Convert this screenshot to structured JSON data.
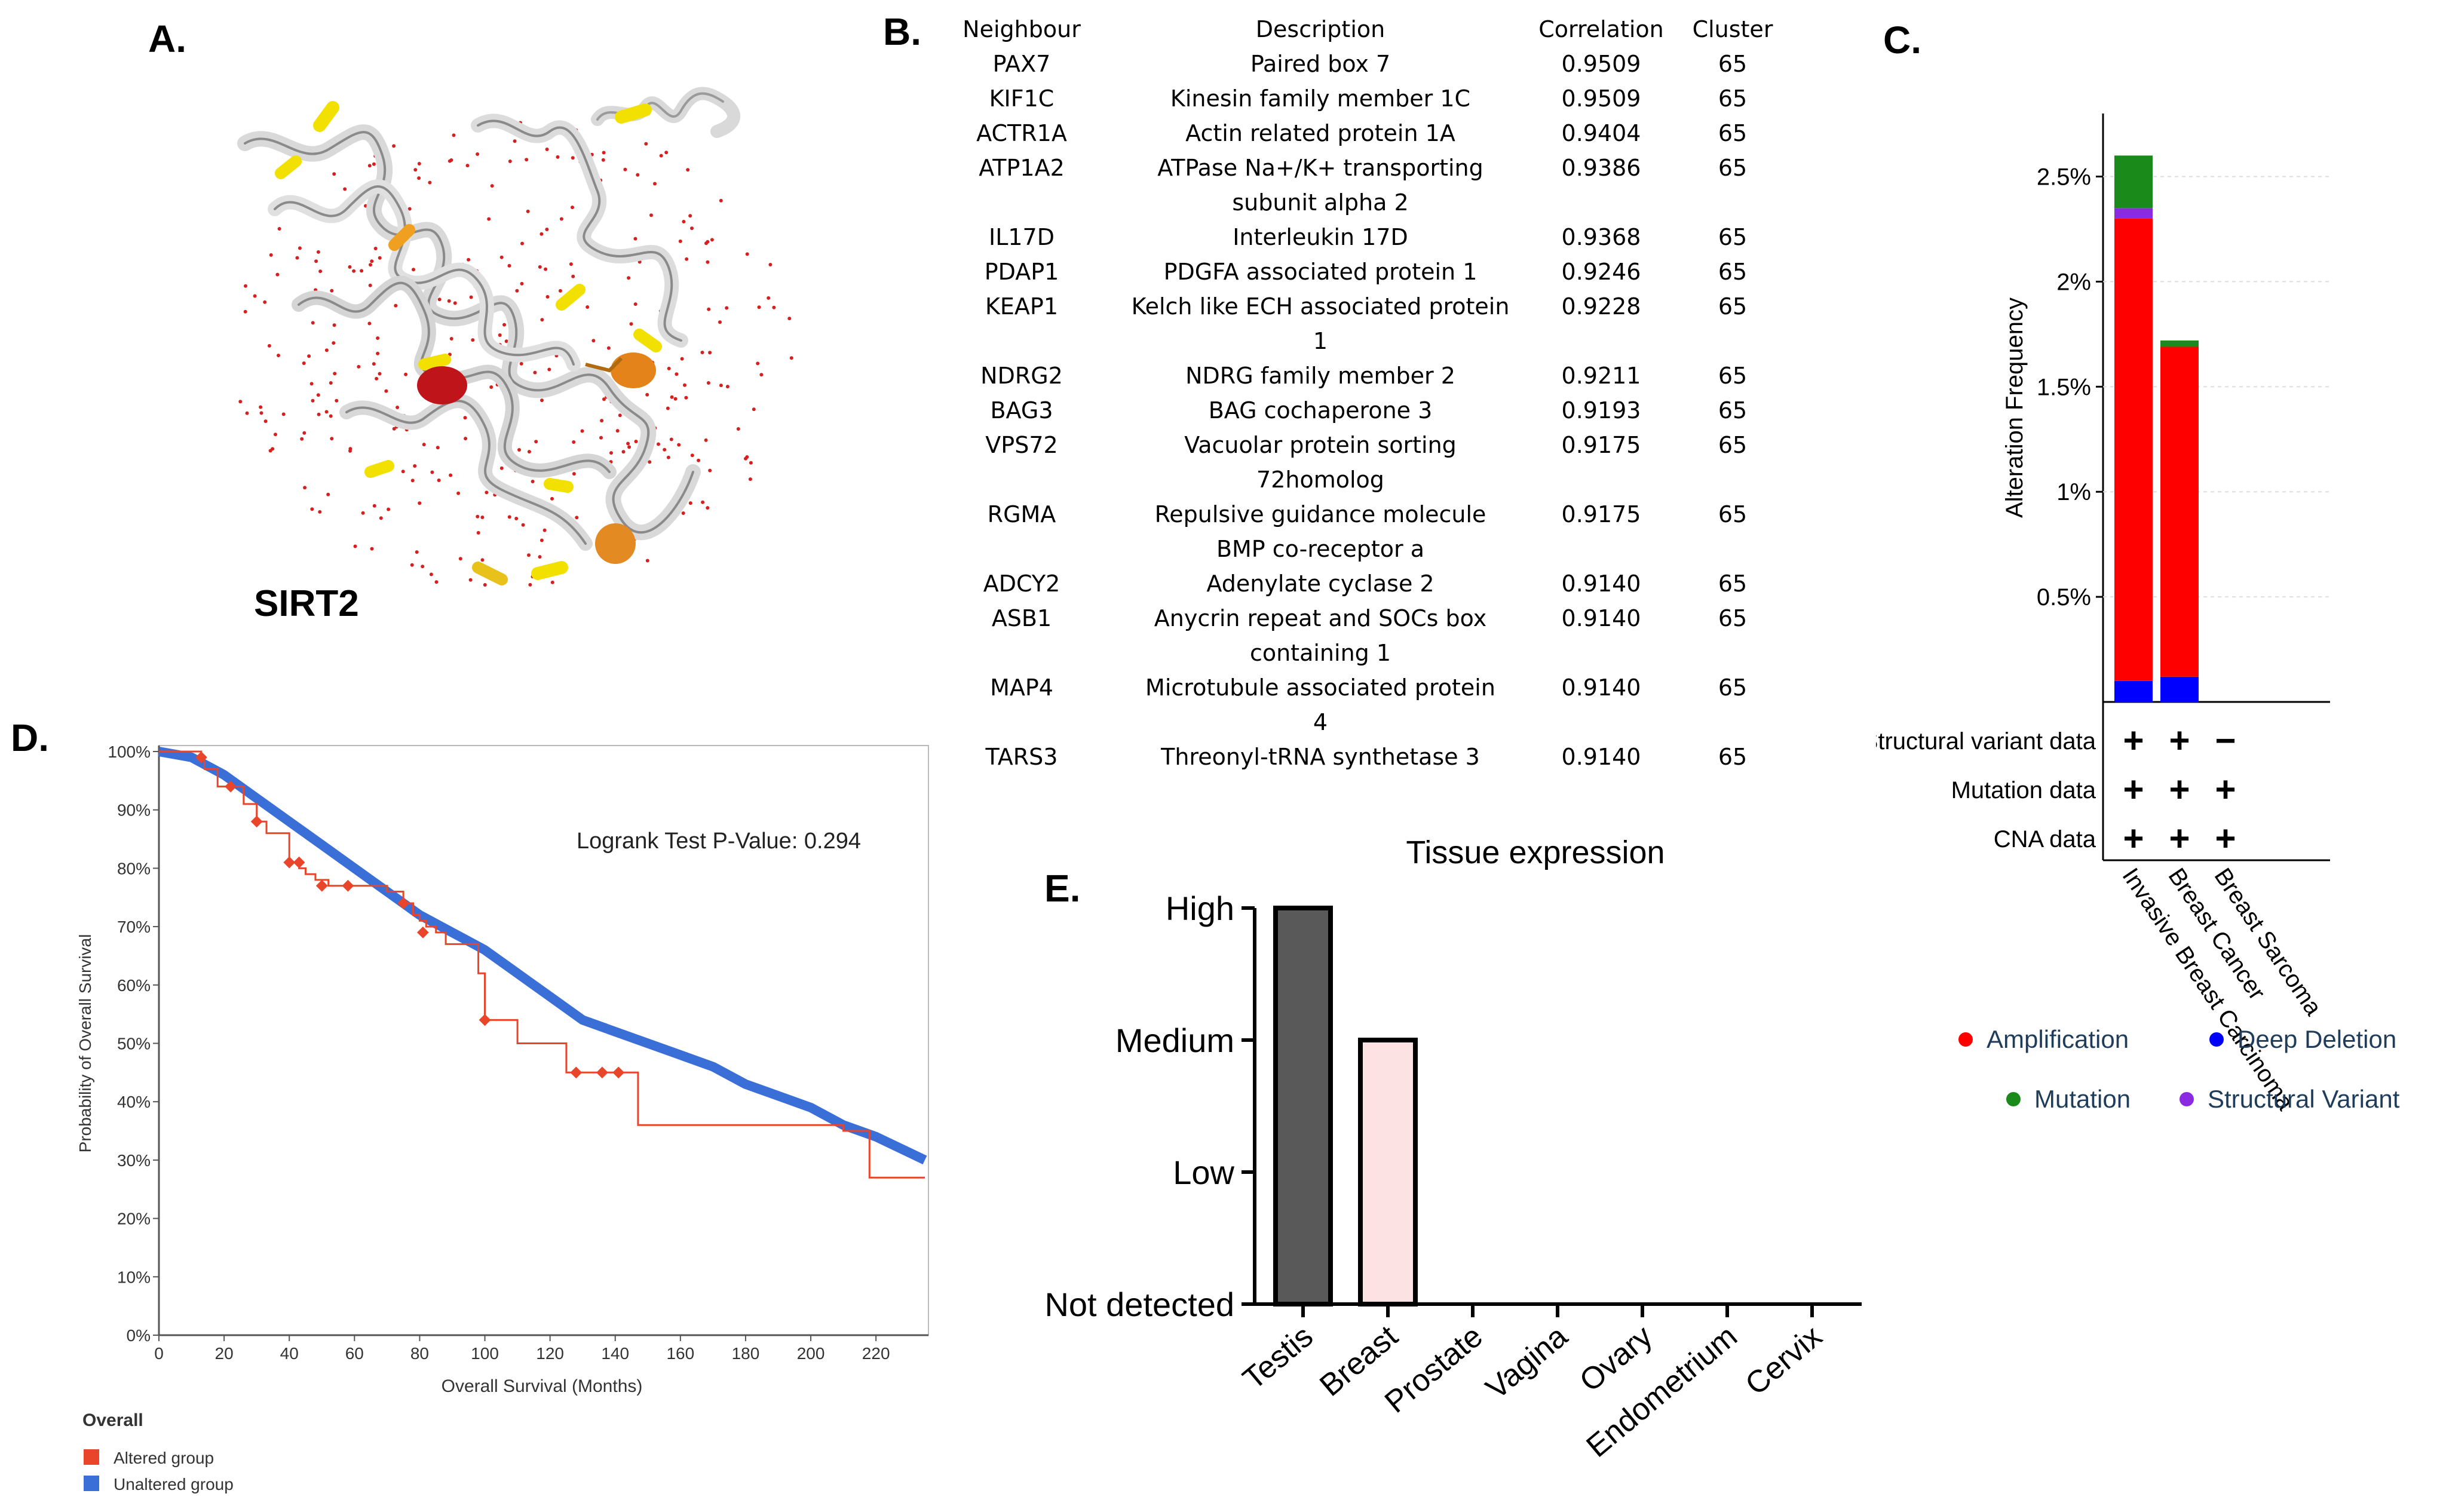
{
  "panels": {
    "a": "A.",
    "b": "B.",
    "c": "C.",
    "d": "D.",
    "e": "E."
  },
  "panel_a": {
    "protein_label": "SIRT2"
  },
  "panel_b": {
    "headers": {
      "gene": "Neighbour",
      "desc": "Description",
      "corr": "Correlation",
      "cluster": "Cluster"
    },
    "rows": [
      {
        "gene": "PAX7",
        "desc1": "Paired box 7",
        "desc2": "",
        "corr": "0.9509",
        "cluster": "65"
      },
      {
        "gene": "KIF1C",
        "desc1": "Kinesin family member 1C",
        "desc2": "",
        "corr": "0.9509",
        "cluster": "65"
      },
      {
        "gene": "ACTR1A",
        "desc1": "Actin related protein 1A",
        "desc2": "",
        "corr": "0.9404",
        "cluster": "65"
      },
      {
        "gene": "ATP1A2",
        "desc1": "ATPase Na+/K+ transporting",
        "desc2": "subunit alpha 2",
        "corr": "0.9386",
        "cluster": "65"
      },
      {
        "gene": "IL17D",
        "desc1": "Interleukin 17D",
        "desc2": "",
        "corr": "0.9368",
        "cluster": "65"
      },
      {
        "gene": "PDAP1",
        "desc1": "PDGFA associated protein 1",
        "desc2": "",
        "corr": "0.9246",
        "cluster": "65"
      },
      {
        "gene": "KEAP1",
        "desc1": "Kelch like ECH associated protein",
        "desc2": "1",
        "corr": "0.9228",
        "cluster": "65"
      },
      {
        "gene": "NDRG2",
        "desc1": "NDRG family member 2",
        "desc2": "",
        "corr": "0.9211",
        "cluster": "65"
      },
      {
        "gene": "BAG3",
        "desc1": "BAG cochaperone 3",
        "desc2": "",
        "corr": "0.9193",
        "cluster": "65"
      },
      {
        "gene": "VPS72",
        "desc1": "Vacuolar protein sorting",
        "desc2": "72homolog",
        "corr": "0.9175",
        "cluster": "65"
      },
      {
        "gene": "RGMA",
        "desc1": "Repulsive guidance molecule",
        "desc2": "BMP co-receptor a",
        "corr": "0.9175",
        "cluster": "65"
      },
      {
        "gene": "ADCY2",
        "desc1": "Adenylate cyclase 2",
        "desc2": "",
        "corr": "0.9140",
        "cluster": "65"
      },
      {
        "gene": "ASB1",
        "desc1": "Anycrin repeat and SOCs box",
        "desc2": "containing 1",
        "corr": "0.9140",
        "cluster": "65"
      },
      {
        "gene": "MAP4",
        "desc1": "Microtubule associated protein",
        "desc2": "4",
        "corr": "0.9140",
        "cluster": "65"
      },
      {
        "gene": "TARS3",
        "desc1": "Threonyl-tRNA synthetase 3",
        "desc2": "",
        "corr": "0.9140",
        "cluster": "65"
      }
    ]
  },
  "colors": {
    "amplification": "#ff0000",
    "deep_deletion": "#0000ff",
    "mutation": "#1a8a1a",
    "structural_variant": "#8a2be2",
    "altered": "#e8452a",
    "unaltered": "#3a6fd8",
    "testis": "#595959",
    "breast": "#fde2e4"
  },
  "chart_data": [
    {
      "id": "panel-c",
      "type": "bar",
      "ylabel": "Alteration Frequency",
      "yticks": [
        "0.5%",
        "1%",
        "1.5%",
        "2%",
        "2.5%"
      ],
      "ylim": [
        0,
        2.8
      ],
      "categories": [
        "Invasive Breast Carcinoma",
        "Breast Cancer",
        "Breast Sarcoma"
      ],
      "series": [
        {
          "name": "Deep Deletion",
          "values": [
            0.1,
            0.12,
            0
          ]
        },
        {
          "name": "Amplification",
          "values": [
            2.2,
            1.57,
            0
          ]
        },
        {
          "name": "Structural Variant",
          "values": [
            0.05,
            0,
            0
          ]
        },
        {
          "name": "Mutation",
          "values": [
            0.25,
            0.03,
            0
          ]
        }
      ],
      "data_rows": [
        {
          "label": "Structural variant data",
          "marks": [
            "+",
            "+",
            "−"
          ]
        },
        {
          "label": "Mutation data",
          "marks": [
            "+",
            "+",
            "+"
          ]
        },
        {
          "label": "CNA data",
          "marks": [
            "+",
            "+",
            "+"
          ]
        }
      ],
      "legend": [
        "Amplification",
        "Deep Deletion",
        "Mutation",
        "Structural Variant"
      ]
    },
    {
      "id": "panel-d",
      "type": "line",
      "title": "Logrank Test P-Value: 0.294",
      "xlabel": "Overall Survival (Months)",
      "ylabel": "Probability of Overall Survival",
      "xlim": [
        0,
        235
      ],
      "ylim": [
        0,
        100
      ],
      "xticks": [
        0,
        20,
        40,
        60,
        80,
        100,
        120,
        140,
        160,
        180,
        200,
        220
      ],
      "yticks": [
        "0%",
        "10%",
        "20%",
        "30%",
        "40%",
        "50%",
        "60%",
        "70%",
        "80%",
        "90%",
        "100%"
      ],
      "legend_title": "Overall",
      "series": [
        {
          "name": "Altered group",
          "x": [
            0,
            12,
            13,
            14,
            18,
            22,
            26,
            30,
            33,
            37,
            40,
            43,
            45,
            48,
            52,
            58,
            65,
            70,
            75,
            78,
            80,
            82,
            85,
            88,
            92,
            96,
            98,
            100,
            110,
            125,
            140,
            147,
            150,
            160,
            180,
            200,
            210,
            216,
            218,
            235
          ],
          "y": [
            100,
            100,
            99,
            97,
            94,
            94,
            91,
            88,
            86,
            86,
            81,
            80,
            79,
            78,
            77,
            77,
            77,
            76,
            74,
            72,
            71,
            70,
            69,
            67,
            67,
            67,
            62,
            54,
            50,
            45,
            45,
            36,
            36,
            36,
            36,
            36,
            35,
            35,
            27,
            27
          ]
        },
        {
          "name": "Unaltered group",
          "x": [
            0,
            10,
            20,
            30,
            40,
            50,
            60,
            70,
            80,
            90,
            100,
            110,
            120,
            130,
            140,
            150,
            160,
            170,
            180,
            190,
            200,
            210,
            220,
            235
          ],
          "y": [
            100,
            99,
            96,
            92,
            88,
            84,
            80,
            76,
            72,
            69,
            66,
            62,
            58,
            54,
            52,
            50,
            48,
            46,
            43,
            41,
            39,
            36,
            34,
            30
          ]
        }
      ]
    },
    {
      "id": "panel-e",
      "type": "bar",
      "title": "Tissue expression",
      "categories": [
        "Testis",
        "Breast",
        "Prostate",
        "Vagina",
        "Ovary",
        "Endometrium",
        "Cervix"
      ],
      "values": [
        3,
        2,
        0,
        0,
        0,
        0,
        0
      ],
      "ylevels": [
        "Not detected",
        "Low",
        "Medium",
        "High"
      ],
      "ylim": [
        0,
        3
      ]
    }
  ]
}
